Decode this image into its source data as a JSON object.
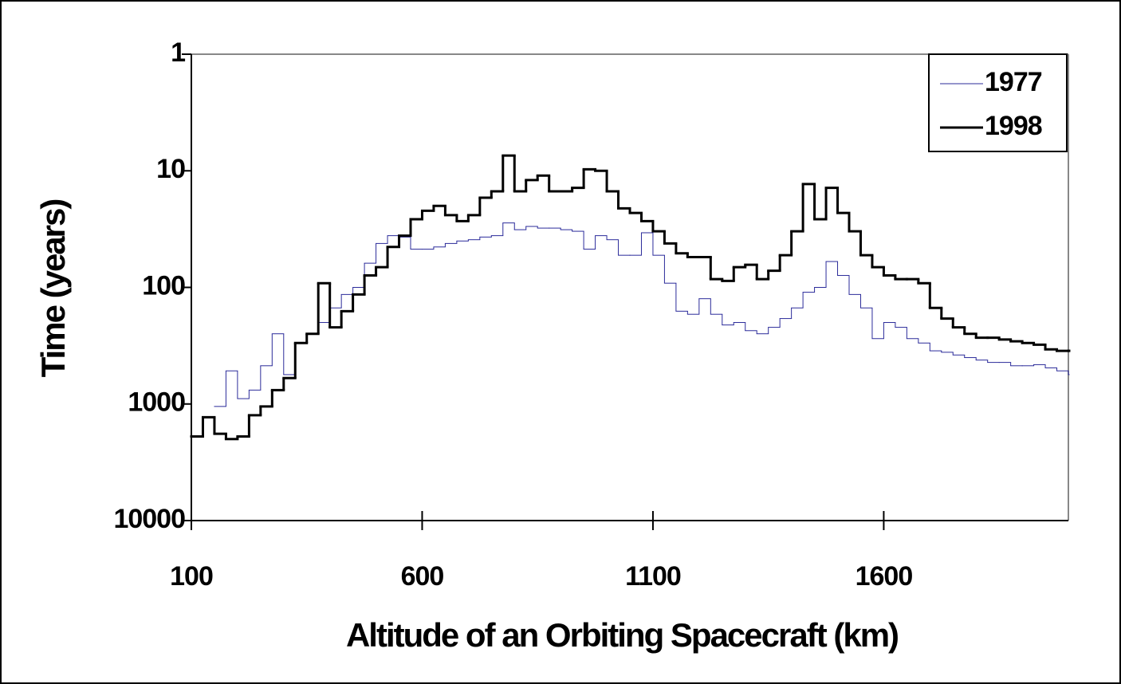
{
  "chart_data": {
    "type": "line",
    "step": true,
    "x_label": "Altitude of an Orbiting Spacecraft (km)",
    "y_label": "Time (years)",
    "x": [
      100,
      125,
      150,
      175,
      200,
      225,
      250,
      275,
      300,
      325,
      350,
      375,
      400,
      425,
      450,
      475,
      500,
      525,
      550,
      575,
      600,
      625,
      650,
      675,
      700,
      725,
      750,
      775,
      800,
      825,
      850,
      875,
      900,
      925,
      950,
      975,
      1000,
      1025,
      1050,
      1075,
      1100,
      1125,
      1150,
      1175,
      1200,
      1225,
      1250,
      1275,
      1300,
      1325,
      1350,
      1375,
      1400,
      1425,
      1450,
      1475,
      1500,
      1525,
      1550,
      1575,
      1600,
      1625,
      1650,
      1675,
      1700,
      1725,
      1750,
      1775,
      1800,
      1825,
      1850,
      1875,
      1900,
      1925,
      1950,
      1975,
      2000
    ],
    "series": [
      {
        "name": "1977",
        "color": "#2b2b9a",
        "width": 1,
        "values": [
          null,
          null,
          1050,
          520,
          900,
          760,
          470,
          250,
          560,
          300,
          250,
          200,
          150,
          115,
          100,
          62,
          42,
          36,
          37,
          47,
          47,
          45,
          42,
          40,
          39,
          37,
          36,
          28,
          32,
          30,
          31,
          31,
          32,
          33,
          47,
          36,
          39,
          53,
          53,
          34,
          53,
          92,
          160,
          170,
          125,
          170,
          210,
          200,
          235,
          250,
          220,
          185,
          150,
          110,
          100,
          60,
          79,
          115,
          150,
          275,
          200,
          220,
          275,
          300,
          350,
          360,
          380,
          400,
          420,
          440,
          440,
          470,
          470,
          460,
          490,
          520,
          560
        ]
      },
      {
        "name": "1998",
        "color": "#000000",
        "width": 3,
        "values": [
          1900,
          1300,
          1800,
          2000,
          1900,
          1250,
          1050,
          760,
          600,
          300,
          250,
          92,
          220,
          160,
          115,
          79,
          67,
          45,
          36,
          26,
          22,
          20,
          24,
          27,
          24,
          17,
          15,
          7.4,
          15,
          12,
          11,
          15,
          15,
          14,
          9.7,
          10,
          15,
          21,
          23,
          27,
          33,
          42,
          51,
          55,
          55,
          85,
          88,
          67,
          64,
          85,
          72,
          53,
          33,
          13,
          26,
          14,
          23,
          33,
          53,
          67,
          79,
          85,
          85,
          92,
          150,
          185,
          220,
          250,
          270,
          270,
          280,
          290,
          300,
          310,
          340,
          350,
          350
        ]
      }
    ],
    "xlim": [
      100,
      2000
    ],
    "xticks": [
      100,
      600,
      1100,
      1600
    ],
    "ylim": [
      1,
      10000
    ],
    "yticks": [
      1,
      10,
      100,
      1000,
      10000
    ],
    "ylog": true,
    "yinverted": true,
    "legend": "top-right"
  }
}
